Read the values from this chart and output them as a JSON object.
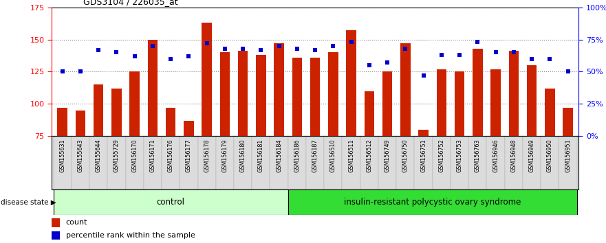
{
  "title": "GDS3104 / 226035_at",
  "samples": [
    "GSM155631",
    "GSM155643",
    "GSM155644",
    "GSM155729",
    "GSM156170",
    "GSM156171",
    "GSM156176",
    "GSM156177",
    "GSM156178",
    "GSM156179",
    "GSM156180",
    "GSM156181",
    "GSM156184",
    "GSM156186",
    "GSM156187",
    "GSM156510",
    "GSM156511",
    "GSM156512",
    "GSM156749",
    "GSM156750",
    "GSM156751",
    "GSM156752",
    "GSM156753",
    "GSM156763",
    "GSM156946",
    "GSM156948",
    "GSM156949",
    "GSM156950",
    "GSM156951"
  ],
  "bar_values": [
    97,
    95,
    115,
    112,
    125,
    150,
    97,
    87,
    163,
    140,
    141,
    138,
    147,
    136,
    136,
    140,
    157,
    110,
    125,
    147,
    80,
    127,
    125,
    143,
    127,
    141,
    130,
    112,
    97
  ],
  "dot_pcts": [
    50,
    50,
    67,
    65,
    62,
    70,
    60,
    62,
    72,
    68,
    68,
    67,
    70,
    68,
    67,
    70,
    73,
    55,
    57,
    68,
    47,
    63,
    63,
    73,
    65,
    65,
    60,
    60,
    50
  ],
  "control_count": 13,
  "ylim_left": [
    75,
    175
  ],
  "yticks_left": [
    75,
    100,
    125,
    150,
    175
  ],
  "yticks_right": [
    0,
    25,
    50,
    75,
    100
  ],
  "ytick_labels_right": [
    "0%",
    "25%",
    "50%",
    "75%",
    "100%"
  ],
  "bar_color": "#CC2200",
  "dot_color": "#0000CC",
  "control_label": "control",
  "disease_label": "insulin-resistant polycystic ovary syndrome",
  "disease_state_label": "disease state",
  "legend_count": "count",
  "legend_pct": "percentile rank within the sample",
  "control_bg": "#CCFFCC",
  "disease_bg": "#33DD33",
  "grid_color": "#888888"
}
